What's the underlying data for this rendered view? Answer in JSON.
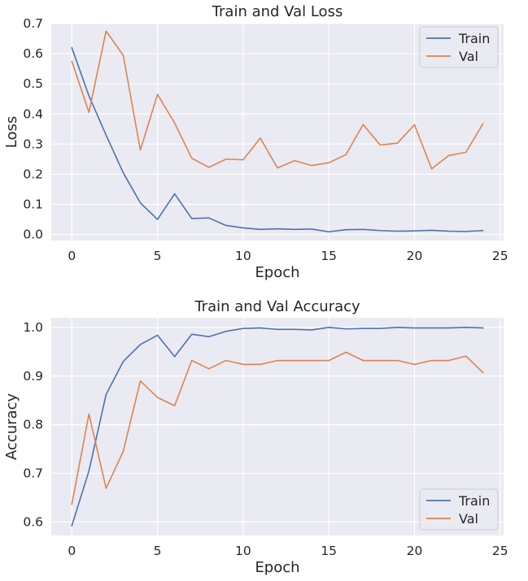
{
  "colors": {
    "train": "#4c72b0",
    "val": "#dd8452",
    "plot_background": "#eaeaf2",
    "grid": "#ffffff"
  },
  "chart_data": [
    {
      "type": "line",
      "title": "Train and Val Loss",
      "xlabel": "Epoch",
      "ylabel": "Loss",
      "xlim": [
        -1.2,
        25.2
      ],
      "ylim": [
        -0.02,
        0.7
      ],
      "xticks": [
        0,
        5,
        10,
        15,
        20,
        25
      ],
      "yticks": [
        0.0,
        0.1,
        0.2,
        0.3,
        0.4,
        0.5,
        0.6,
        0.7
      ],
      "ytick_labels": [
        "0.0",
        "0.1",
        "0.2",
        "0.3",
        "0.4",
        "0.5",
        "0.6",
        "0.7"
      ],
      "grid": true,
      "legend_position": "top-right",
      "x": [
        0,
        1,
        2,
        3,
        4,
        5,
        6,
        7,
        8,
        9,
        10,
        11,
        12,
        13,
        14,
        15,
        16,
        17,
        18,
        19,
        20,
        21,
        22,
        23,
        24
      ],
      "series": [
        {
          "name": "Train",
          "color": "#4c72b0",
          "values": [
            0.62,
            0.46,
            0.33,
            0.205,
            0.105,
            0.05,
            0.135,
            0.053,
            0.055,
            0.03,
            0.022,
            0.017,
            0.019,
            0.017,
            0.018,
            0.009,
            0.016,
            0.017,
            0.013,
            0.011,
            0.012,
            0.014,
            0.011,
            0.01,
            0.013
          ]
        },
        {
          "name": "Val",
          "color": "#dd8452",
          "values": [
            0.575,
            0.405,
            0.675,
            0.595,
            0.28,
            0.465,
            0.37,
            0.253,
            0.223,
            0.25,
            0.248,
            0.32,
            0.221,
            0.245,
            0.229,
            0.238,
            0.265,
            0.365,
            0.297,
            0.303,
            0.364,
            0.218,
            0.262,
            0.273,
            0.368
          ]
        }
      ]
    },
    {
      "type": "line",
      "title": "Train and Val Accuracy",
      "xlabel": "Epoch",
      "ylabel": "Accuracy",
      "xlim": [
        -1.2,
        25.2
      ],
      "ylim": [
        0.572,
        1.02
      ],
      "xticks": [
        0,
        5,
        10,
        15,
        20,
        25
      ],
      "yticks": [
        0.6,
        0.7,
        0.8,
        0.9,
        1.0
      ],
      "ytick_labels": [
        "0.6",
        "0.7",
        "0.8",
        "0.9",
        "1.0"
      ],
      "grid": true,
      "legend_position": "bottom-right",
      "x": [
        0,
        1,
        2,
        3,
        4,
        5,
        6,
        7,
        8,
        9,
        10,
        11,
        12,
        13,
        14,
        15,
        16,
        17,
        18,
        19,
        20,
        21,
        22,
        23,
        24
      ],
      "series": [
        {
          "name": "Train",
          "color": "#4c72b0",
          "values": [
            0.592,
            0.705,
            0.862,
            0.93,
            0.965,
            0.984,
            0.94,
            0.986,
            0.981,
            0.992,
            0.998,
            0.999,
            0.996,
            0.996,
            0.995,
            1.0,
            0.997,
            0.998,
            0.998,
            1.0,
            0.999,
            0.999,
            0.999,
            1.0,
            0.999
          ]
        },
        {
          "name": "Val",
          "color": "#dd8452",
          "values": [
            0.636,
            0.822,
            0.669,
            0.745,
            0.89,
            0.856,
            0.839,
            0.932,
            0.915,
            0.932,
            0.924,
            0.924,
            0.932,
            0.932,
            0.932,
            0.932,
            0.949,
            0.932,
            0.932,
            0.932,
            0.924,
            0.932,
            0.932,
            0.941,
            0.907
          ]
        }
      ]
    }
  ]
}
